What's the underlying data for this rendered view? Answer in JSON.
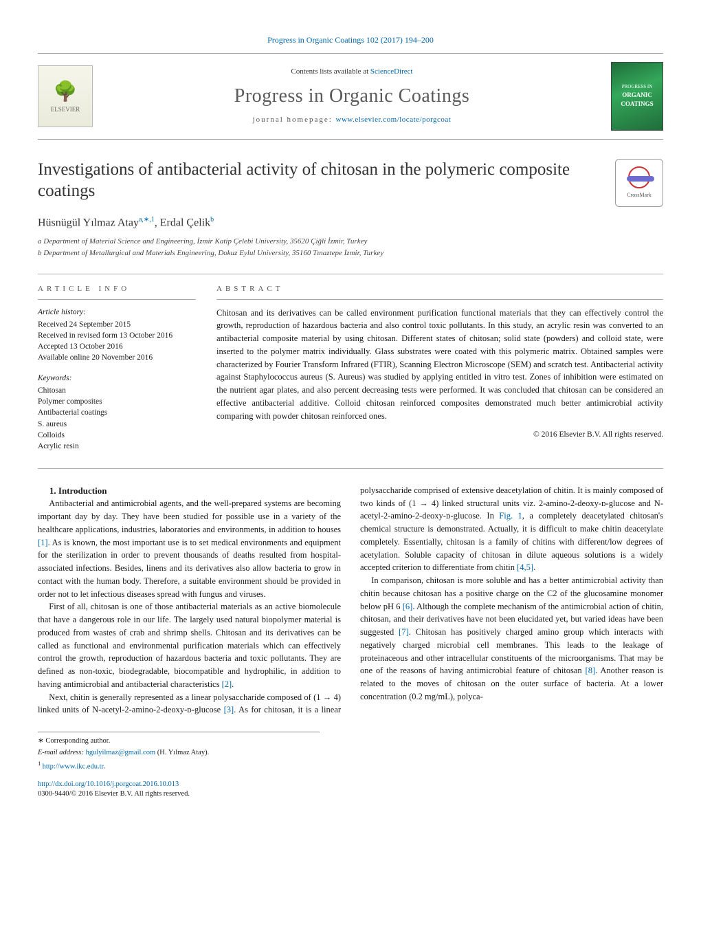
{
  "journal_reference": "Progress in Organic Coatings 102 (2017) 194–200",
  "banner": {
    "contents_prefix": "Contents lists available at ",
    "contents_link_text": "ScienceDirect",
    "journal_name": "Progress in Organic Coatings",
    "homepage_prefix": "journal homepage: ",
    "homepage_url_text": "www.elsevier.com/locate/porgcoat",
    "elsevier_label": "ELSEVIER",
    "cover_top": "PROGRESS IN",
    "cover_main1": "ORGANIC",
    "cover_main2": "COATINGS"
  },
  "title": "Investigations of antibacterial activity of chitosan in the polymeric composite coatings",
  "crossmark_label": "CrossMark",
  "authors_html": "Hüsnügül Yılmaz Atay",
  "author1_sup": "a,∗,1",
  "author2": ", Erdal Çelik",
  "author2_sup": "b",
  "affiliations": {
    "a": "a Department of Material Science and Engineering, İzmir Katip Çelebi University, 35620 Çiğli İzmir, Turkey",
    "b": "b Department of Metallurgical and Materials Engineering, Dokuz Eylul University, 35160 Tınaztepe İzmir, Turkey"
  },
  "labels": {
    "article_info": "ARTICLE INFO",
    "abstract": "ABSTRACT"
  },
  "history": {
    "head": "Article history:",
    "received": "Received 24 September 2015",
    "revised": "Received in revised form 13 October 2016",
    "accepted": "Accepted 13 October 2016",
    "online": "Available online 20 November 2016"
  },
  "keywords": {
    "head": "Keywords:",
    "items": [
      "Chitosan",
      "Polymer composites",
      "Antibacterial coatings",
      "S. aureus",
      "Colloids",
      "Acrylic resin"
    ]
  },
  "abstract": "Chitosan and its derivatives can be called environment purification functional materials that they can effectively control the growth, reproduction of hazardous bacteria and also control toxic pollutants. In this study, an acrylic resin was converted to an antibacterial composite material by using chitosan. Different states of chitosan; solid state (powders) and colloid state, were inserted to the polymer matrix individually. Glass substrates were coated with this polymeric matrix. Obtained samples were characterized by Fourier Transform Infrared (FTIR), Scanning Electron Microscope (SEM) and scratch test. Antibacterial activity against Staphylococcus aureus (S. Aureus) was studied by applying entitled in vitro test. Zones of inhibition were estimated on the nutrient agar plates, and also percent decreasing tests were performed. It was concluded that chitosan can be considered an effective antibacterial additive. Colloid chitosan reinforced composites demonstrated much better antimicrobial activity comparing with powder chitosan reinforced ones.",
  "copyright": "© 2016 Elsevier B.V. All rights reserved.",
  "section1_head": "1. Introduction",
  "para1": "Antibacterial and antimicrobial agents, and the well-prepared systems are becoming important day by day. They have been studied for possible use in a variety of the healthcare applications, industries, laboratories and environments, in addition to houses ",
  "para1_cite": "[1]",
  "para1_tail": ". As is known, the most important use is to set medical environments and equipment for the sterilization in order to prevent thousands of deaths resulted from hospital-associated infections. Besides, linens and its derivatives also allow bacteria to grow in contact with the human body. Therefore, a suitable environment should be provided in order not to let infectious diseases spread with fungus and viruses.",
  "para2": "First of all, chitosan is one of those antibacterial materials as an active biomolecule that have a dangerous role in our life. The largely used natural biopolymer material is produced from wastes of crab and shrimp shells. Chitosan and its derivatives can be called as functional and environmental purification materials which can effectively control the growth, reproduction of hazardous bacteria and toxic pollutants. They are defined as non-toxic, biodegradable, biocompatible and hydrophilic, in addition to having antimicrobial and antibacterial characteristics ",
  "para2_cite": "[2]",
  "para2_tail": ".",
  "para3a": "Next, chitin is generally represented as a linear polysaccharide composed of (1 → 4) linked units of N-acetyl-2-amino-2-deoxy-ᴅ-glucose ",
  "para3_cite1": "[3]",
  "para3b": ". As for chitosan, it is a linear polysaccharide comprised of extensive deacetylation of chitin. It is mainly composed of two kinds of (1 → 4) linked structural units viz. 2-amino-2-deoxy-ᴅ-glucose and N-acetyl-2-amino-2-deoxy-ᴅ-glucose. In ",
  "para3_fig": "Fig. 1",
  "para3c": ", a completely deacetylated chitosan's chemical structure is demonstrated. Actually, it is difficult to make chitin deacetylate completely. Essentially, chitosan is a family of chitins with different/low degrees of acetylation. Soluble capacity of chitosan in dilute aqueous solutions is a widely accepted criterion to differentiate from chitin ",
  "para3_cite2": "[4,5]",
  "para3d": ".",
  "para4a": "In comparison, chitosan is more soluble and has a better antimicrobial activity than chitin because chitosan has a positive charge on the C2 of the glucosamine monomer below pH 6 ",
  "para4_cite1": "[6]",
  "para4b": ". Although the complete mechanism of the antimicrobial action of chitin, chitosan, and their derivatives have not been elucidated yet, but varied ideas have been suggested ",
  "para4_cite2": "[7]",
  "para4c": ". Chitosan has positively charged amino group which interacts with negatively charged microbial cell membranes. This leads to the leakage of proteinaceous and other intracellular constituents of the microorganisms. That may be one of the reasons of having antimicrobial feature of chitosan ",
  "para4_cite3": "[8]",
  "para4d": ". Another reason is related to the moves of chitosan on the outer surface of bacteria. At a lower concentration (0.2 mg/mL), polyca-",
  "footnotes": {
    "corr": "∗ Corresponding author.",
    "email_label": "E-mail address: ",
    "email": "hgulyilmaz@gmail.com",
    "email_person": " (H. Yılmaz Atay).",
    "note1_sup": "1 ",
    "note1_url": "http://www.ikc.edu.tr"
  },
  "doi": {
    "url_text": "http://dx.doi.org/10.1016/j.porgcoat.2016.10.013",
    "line2": "0300-9440/© 2016 Elsevier B.V. All rights reserved."
  },
  "colors": {
    "link": "#0066a8",
    "rule": "#aaaaaa",
    "cover_bg": "#2a8a4a"
  }
}
